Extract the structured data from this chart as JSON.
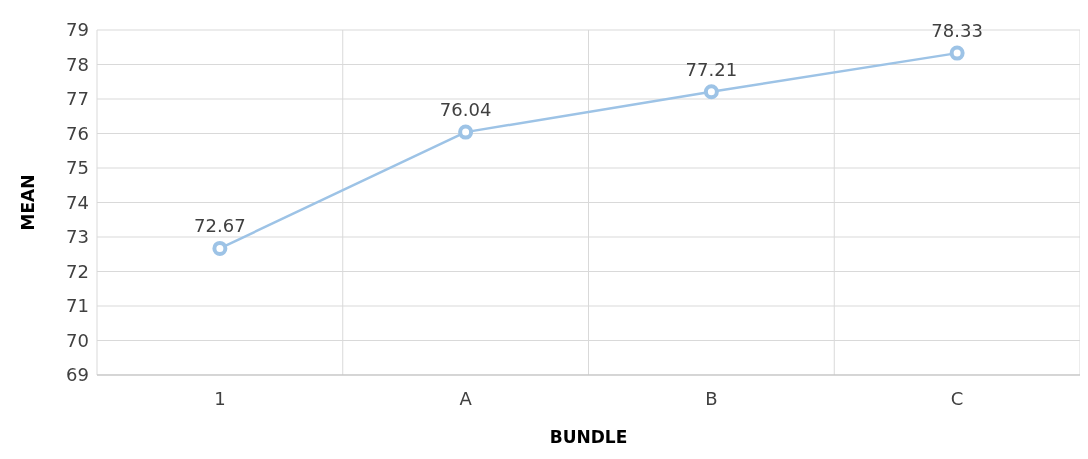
{
  "chart_data": {
    "type": "line",
    "xlabel": "BUNDLE",
    "ylabel": "MEAN",
    "categories": [
      "1",
      "A",
      "B",
      "C"
    ],
    "series": [
      {
        "color": "#9dc3e6",
        "values": [
          72.67,
          76.04,
          77.21,
          78.33
        ]
      }
    ],
    "ylim": [
      69,
      79
    ],
    "yticks": [
      69,
      70,
      71,
      72,
      73,
      74,
      75,
      76,
      77,
      78,
      79
    ],
    "grid": true,
    "marker": "circle",
    "data_labels": true
  }
}
